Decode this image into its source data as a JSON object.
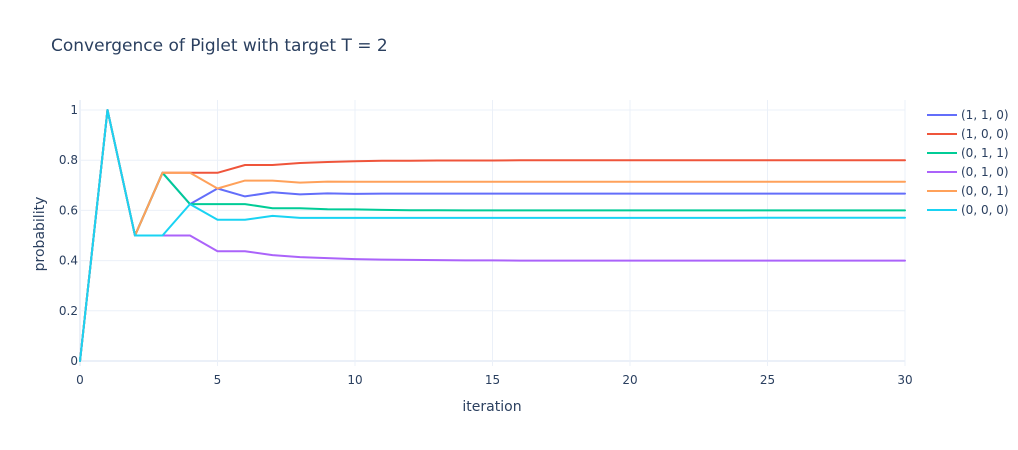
{
  "chart_data": {
    "type": "line",
    "title": "Convergence of Piglet with target T = 2",
    "xlabel": "iteration",
    "ylabel": "probability",
    "xlim": [
      0,
      30
    ],
    "ylim": [
      -0.02,
      1.04
    ],
    "xticks": [
      0,
      5,
      10,
      15,
      20,
      25,
      30
    ],
    "xtick_labels": [
      "0",
      "5",
      "10",
      "15",
      "20",
      "25",
      "30"
    ],
    "yticks": [
      0,
      0.2,
      0.4,
      0.6,
      0.8,
      1
    ],
    "ytick_labels": [
      "0",
      "0.2",
      "0.4",
      "0.6",
      "0.8",
      "1"
    ],
    "grid": true,
    "legend_position": "top-right",
    "x": [
      0,
      1,
      2,
      3,
      4,
      5,
      6,
      7,
      8,
      9,
      10,
      11,
      12,
      13,
      14,
      15,
      16,
      17,
      18,
      19,
      20,
      21,
      22,
      23,
      24,
      25,
      26,
      27,
      28,
      29,
      30
    ],
    "series": [
      {
        "name": "(1, 1, 0)",
        "color": "#636efa",
        "values": [
          0,
          1,
          0.5,
          0.75,
          0.625,
          0.6875,
          0.656,
          0.672,
          0.664,
          0.668,
          0.666,
          0.667,
          0.667,
          0.667,
          0.667,
          0.667,
          0.667,
          0.667,
          0.667,
          0.667,
          0.667,
          0.667,
          0.667,
          0.667,
          0.667,
          0.667,
          0.667,
          0.667,
          0.667,
          0.667,
          0.667
        ]
      },
      {
        "name": "(1, 0, 0)",
        "color": "#ef553b",
        "values": [
          0,
          1,
          0.5,
          0.75,
          0.75,
          0.75,
          0.781,
          0.781,
          0.789,
          0.793,
          0.796,
          0.798,
          0.798,
          0.799,
          0.799,
          0.799,
          0.8,
          0.8,
          0.8,
          0.8,
          0.8,
          0.8,
          0.8,
          0.8,
          0.8,
          0.8,
          0.8,
          0.8,
          0.8,
          0.8,
          0.8
        ]
      },
      {
        "name": "(0, 1, 1)",
        "color": "#00cc96",
        "values": [
          0,
          1,
          0.5,
          0.75,
          0.625,
          0.625,
          0.625,
          0.609,
          0.609,
          0.605,
          0.604,
          0.602,
          0.601,
          0.601,
          0.6,
          0.6,
          0.6,
          0.6,
          0.6,
          0.6,
          0.6,
          0.6,
          0.6,
          0.6,
          0.6,
          0.6,
          0.6,
          0.6,
          0.6,
          0.6,
          0.6
        ]
      },
      {
        "name": "(0, 1, 0)",
        "color": "#ab63fa",
        "values": [
          0,
          1,
          0.5,
          0.5,
          0.5,
          0.4375,
          0.4375,
          0.422,
          0.414,
          0.41,
          0.406,
          0.404,
          0.403,
          0.402,
          0.401,
          0.401,
          0.4,
          0.4,
          0.4,
          0.4,
          0.4,
          0.4,
          0.4,
          0.4,
          0.4,
          0.4,
          0.4,
          0.4,
          0.4,
          0.4,
          0.4
        ]
      },
      {
        "name": "(0, 0, 1)",
        "color": "#ffa15a",
        "values": [
          0,
          1,
          0.5,
          0.75,
          0.75,
          0.6875,
          0.719,
          0.719,
          0.711,
          0.715,
          0.714,
          0.714,
          0.714,
          0.714,
          0.714,
          0.714,
          0.714,
          0.714,
          0.714,
          0.714,
          0.714,
          0.714,
          0.714,
          0.714,
          0.714,
          0.714,
          0.714,
          0.714,
          0.714,
          0.714,
          0.714
        ]
      },
      {
        "name": "(0, 0, 0)",
        "color": "#19d3f3",
        "values": [
          0,
          1,
          0.5,
          0.5,
          0.625,
          0.5625,
          0.5625,
          0.578,
          0.57,
          0.57,
          0.57,
          0.57,
          0.57,
          0.57,
          0.57,
          0.57,
          0.57,
          0.57,
          0.57,
          0.57,
          0.57,
          0.57,
          0.57,
          0.57,
          0.57,
          0.571,
          0.571,
          0.571,
          0.571,
          0.571,
          0.571
        ]
      }
    ]
  }
}
